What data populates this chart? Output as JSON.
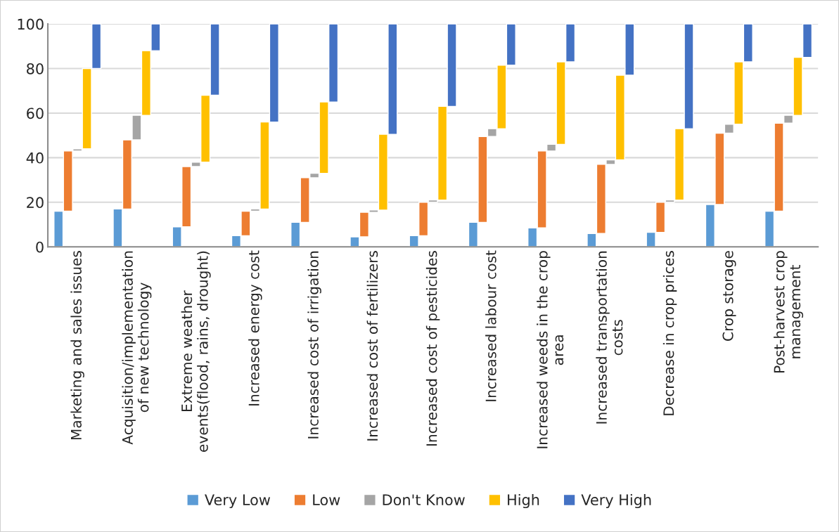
{
  "chart_data": {
    "type": "bar",
    "categories": [
      "Marketing and sales issues",
      "Acquisition/implementation\nof new technology",
      "Extreme weather\nevents(flood, rains, drought)",
      "Increased energy cost",
      "Increased cost of irrigation",
      "Increased cost of fertilizers",
      "Increased cost of pesticides",
      "Increased labour cost",
      "Increased weeds in the crop\narea",
      "Increased transportation\ncosts",
      "Decrease in crop prices",
      "Crop storage",
      "Post-harvest crop\nmanagement"
    ],
    "series": [
      {
        "name": "Very Low",
        "color": "#5b9bd5",
        "base": [
          0,
          0,
          0,
          0,
          0,
          0,
          0,
          0,
          0,
          0,
          0,
          0,
          0
        ],
        "values": [
          16,
          17,
          9,
          5,
          11,
          4.5,
          5,
          11,
          8.5,
          6,
          6.5,
          19,
          16
        ]
      },
      {
        "name": "Low",
        "color": "#ed7d31",
        "base": [
          16,
          17,
          9,
          5,
          11,
          4.5,
          5,
          11,
          8.5,
          6,
          6.5,
          19,
          16
        ],
        "values": [
          27,
          31,
          27,
          11,
          20,
          11,
          15,
          38.5,
          34.5,
          31,
          13.5,
          32,
          39.5
        ]
      },
      {
        "name": "Don't Know",
        "color": "#a5a5a5",
        "base": [
          43,
          48,
          36,
          16,
          31,
          15.5,
          20,
          49.5,
          43,
          37,
          20,
          51,
          55.5
        ],
        "values": [
          1,
          11,
          2,
          1,
          2,
          1,
          1,
          3.5,
          3,
          2,
          1,
          4,
          3.5
        ]
      },
      {
        "name": "High",
        "color": "#ffc000",
        "base": [
          44,
          59,
          38,
          17,
          33,
          16.5,
          21,
          53,
          46,
          39,
          21,
          55,
          59
        ],
        "values": [
          36,
          29,
          30,
          39,
          32,
          34,
          42,
          28.5,
          37,
          38,
          32,
          28,
          26
        ]
      },
      {
        "name": "Very High",
        "color": "#4472c4",
        "base": [
          80,
          88,
          68,
          56,
          65,
          50.5,
          63,
          81.5,
          83,
          77,
          53,
          83,
          85
        ],
        "values": [
          20,
          12,
          32,
          44,
          35,
          49.5,
          37,
          18.5,
          17,
          23,
          47,
          17,
          15
        ]
      }
    ],
    "ylim": [
      0,
      100
    ],
    "yticks": [
      0,
      20,
      40,
      60,
      80,
      100
    ],
    "grid": "y",
    "legend": "bottom"
  }
}
